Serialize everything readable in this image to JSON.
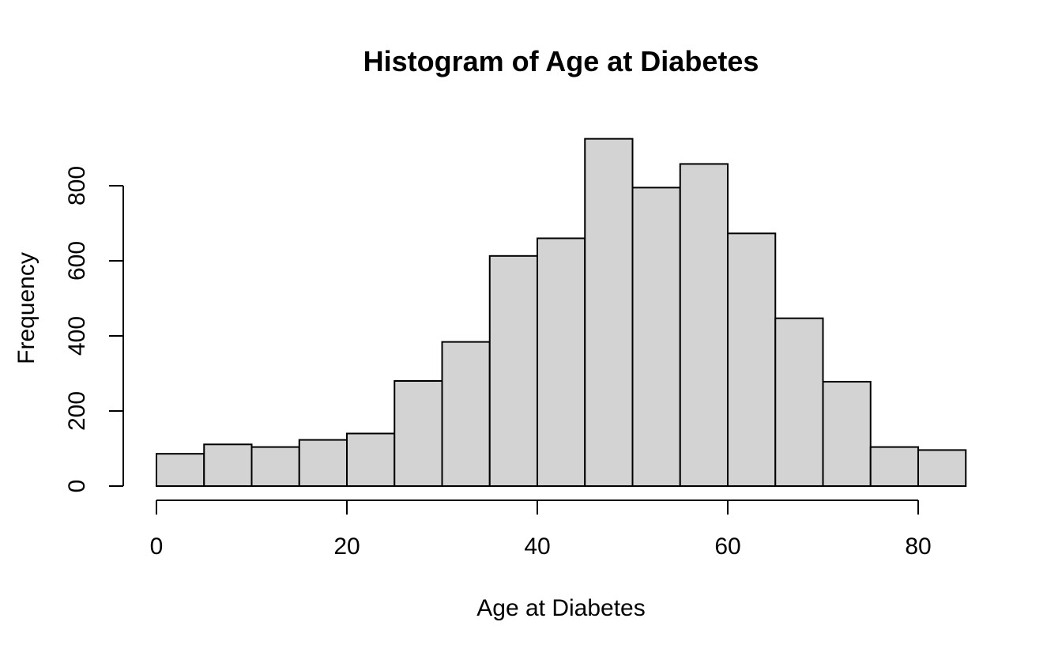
{
  "chart_data": {
    "type": "bar",
    "subtype": "histogram",
    "title": "Histogram of Age at Diabetes",
    "xlabel": "Age at Diabetes",
    "ylabel": "Frequency",
    "bin_edges": [
      0,
      5,
      10,
      15,
      20,
      25,
      30,
      35,
      40,
      45,
      50,
      55,
      60,
      65,
      70,
      75,
      80,
      85
    ],
    "counts": [
      86,
      111,
      104,
      123,
      140,
      280,
      384,
      613,
      660,
      925,
      795,
      858,
      673,
      447,
      278,
      104,
      96
    ],
    "x_ticks": [
      0,
      20,
      40,
      60,
      80
    ],
    "y_ticks": [
      0,
      200,
      400,
      600,
      800
    ],
    "xlim": [
      0,
      85
    ],
    "ylim": [
      0,
      925
    ],
    "grid": "off",
    "legend": "none",
    "colors": {
      "bar_fill": "#d3d3d3",
      "bar_stroke": "#000000",
      "axis": "#000000",
      "text": "#000000",
      "background": "#ffffff"
    }
  }
}
